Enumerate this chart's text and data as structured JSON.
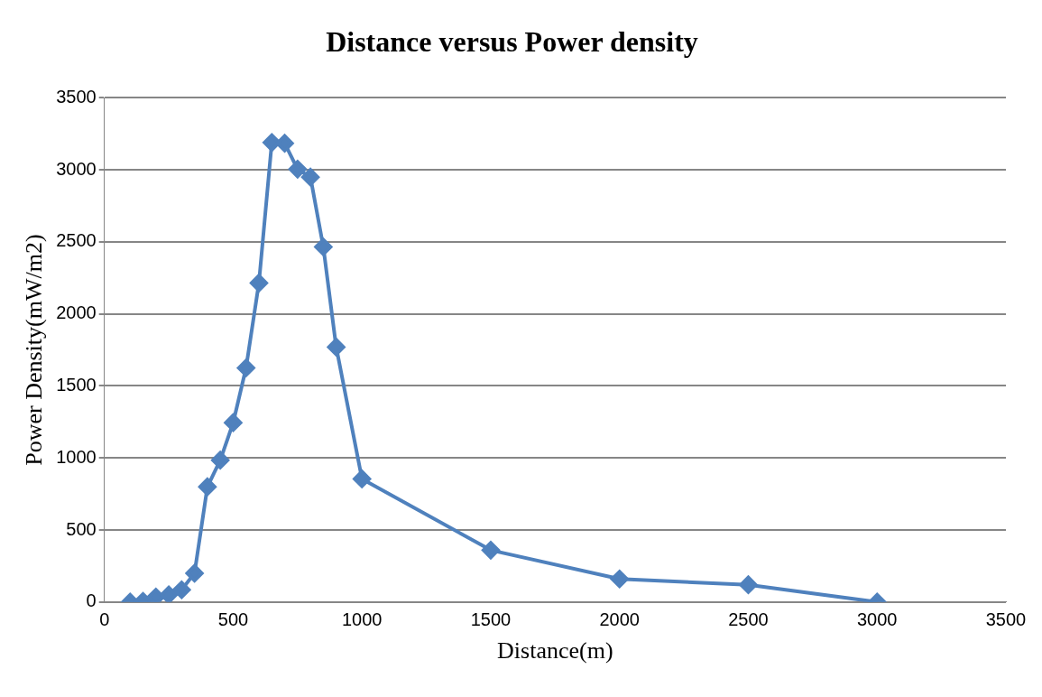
{
  "chart_data": {
    "type": "line",
    "title": "Distance versus Power density",
    "xlabel": "Distance(m)",
    "ylabel": "Power Density(mW/m2)",
    "x": [
      100,
      150,
      200,
      250,
      300,
      350,
      400,
      450,
      500,
      550,
      600,
      650,
      700,
      750,
      800,
      850,
      900,
      1000,
      1500,
      2000,
      2500,
      3000
    ],
    "series": [
      {
        "color": "#4f81bd",
        "values": [
          0,
          5,
          35,
          50,
          85,
          200,
          800,
          985,
          1245,
          1625,
          2215,
          3190,
          3185,
          3005,
          2950,
          2465,
          1770,
          855,
          360,
          160,
          120,
          0
        ]
      }
    ],
    "xlim": [
      0,
      3500
    ],
    "xticks": [
      0,
      500,
      1000,
      1500,
      2000,
      2500,
      3000,
      3500
    ],
    "ylim": [
      0,
      3500
    ],
    "yticks": [
      0,
      500,
      1000,
      1500,
      2000,
      2500,
      3000,
      3500
    ],
    "grid": "y",
    "legend": false,
    "marker": "diamond",
    "line_style": "solid"
  }
}
